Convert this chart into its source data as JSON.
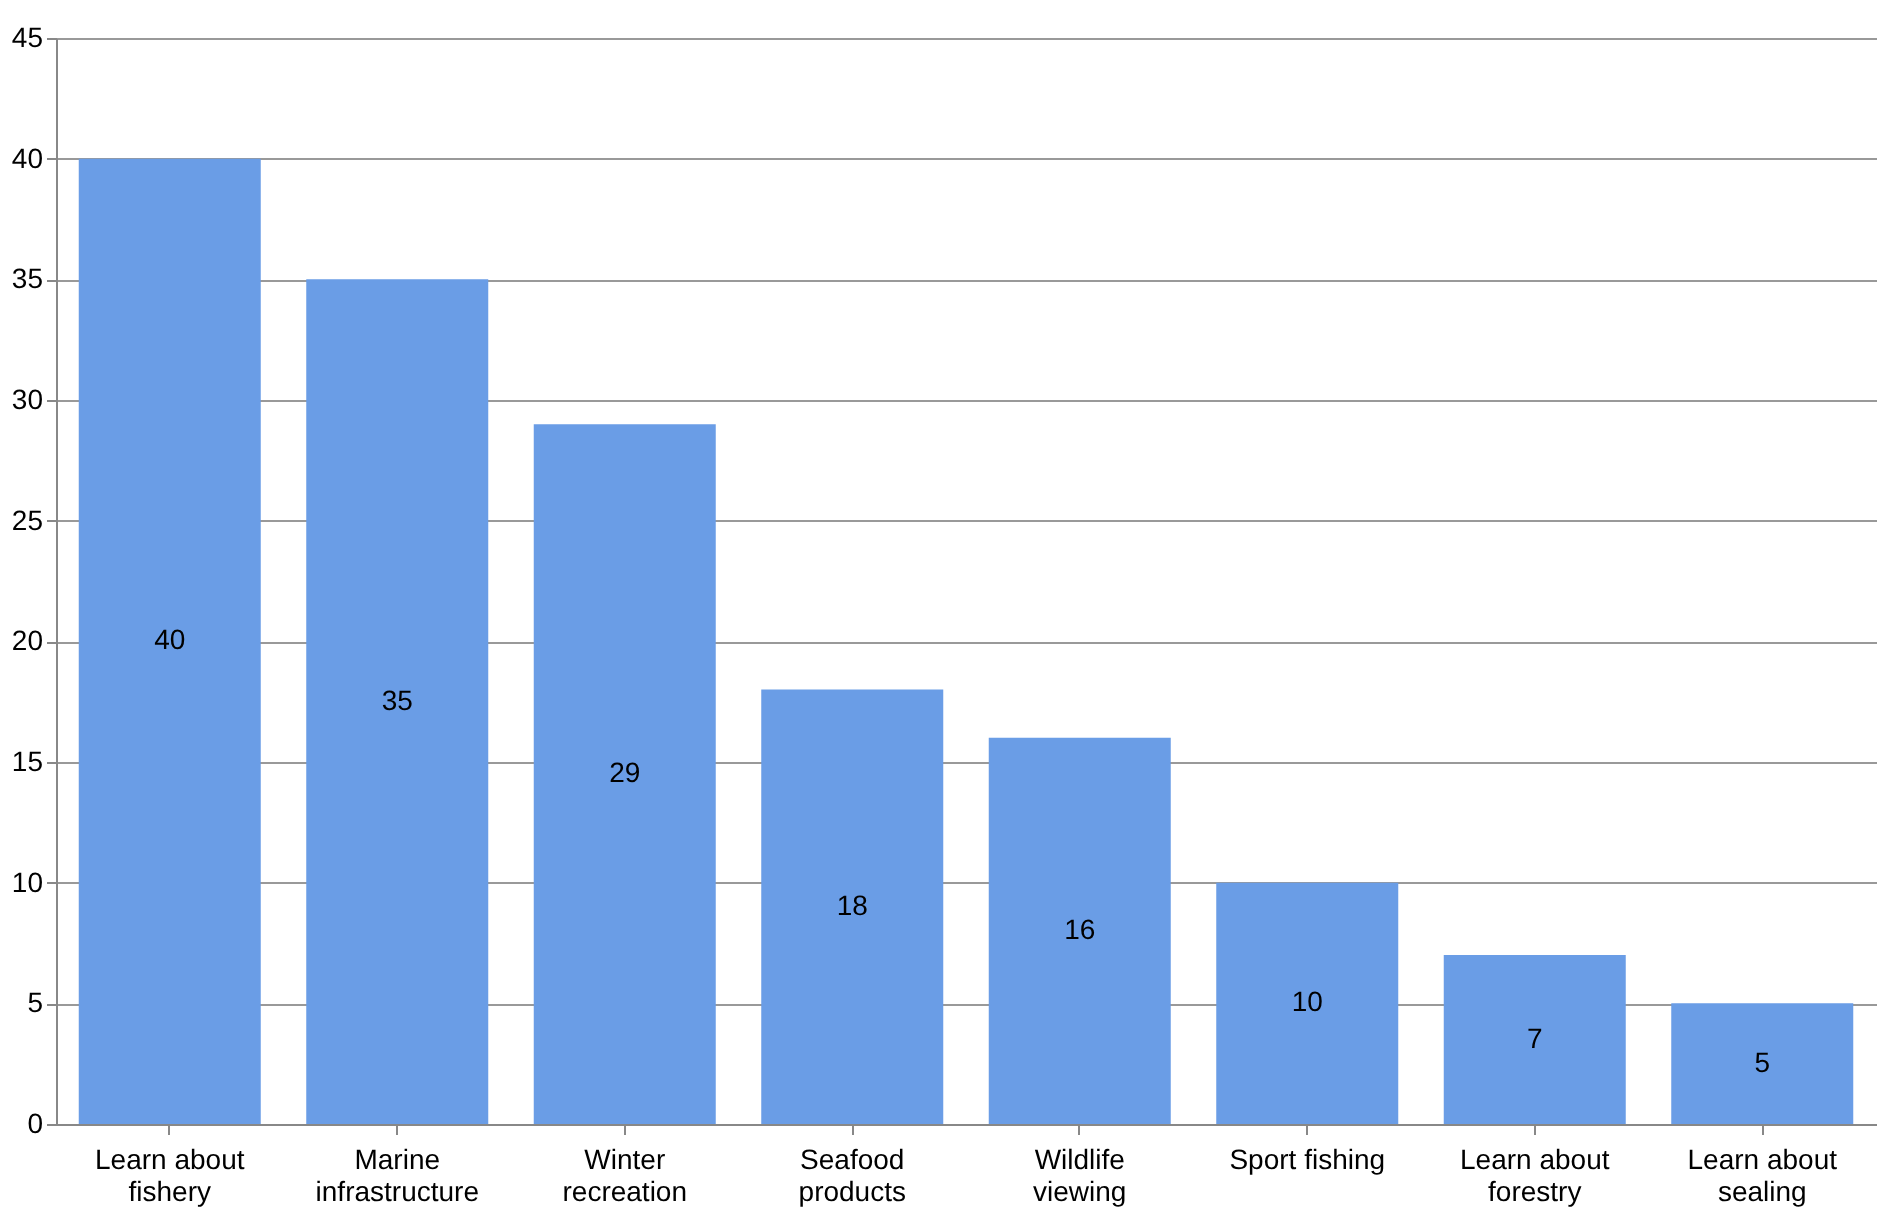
{
  "chart_data": {
    "type": "bar",
    "categories": [
      "Learn about fishery",
      "Marine infrastructure",
      "Winter recreation",
      "Seafood products",
      "Wildlife viewing",
      "Sport fishing",
      "Learn about forestry",
      "Learn about sealing"
    ],
    "values": [
      40,
      35,
      29,
      18,
      16,
      10,
      7,
      5
    ],
    "color": "#6a9de6",
    "ylim": [
      0,
      45
    ],
    "yticks": [
      0,
      5,
      10,
      15,
      20,
      25,
      30,
      35,
      40,
      45
    ],
    "grid": "y",
    "data_labels": true
  }
}
